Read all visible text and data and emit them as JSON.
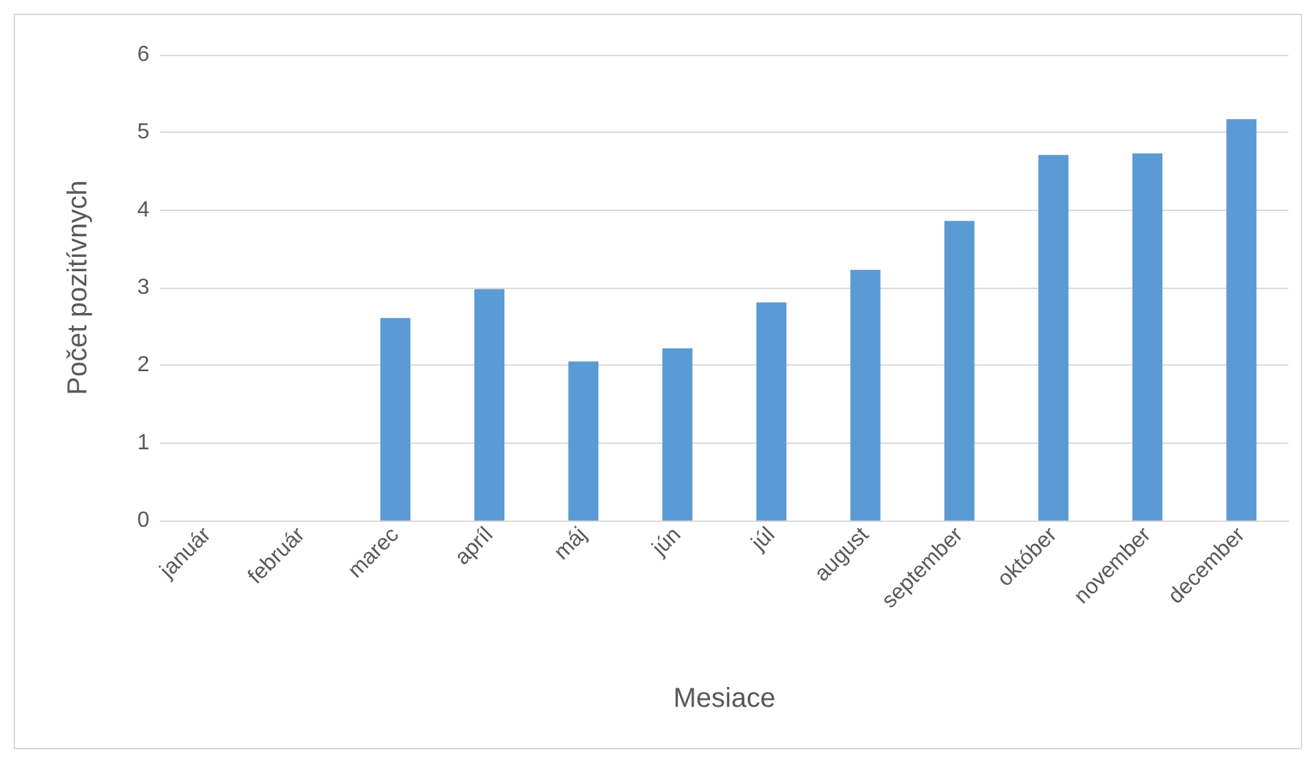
{
  "chart_data": {
    "type": "bar",
    "xlabel": "Mesiace",
    "ylabel": "Počet pozitívnych",
    "categories": [
      "január",
      "február",
      "marec",
      "apríl",
      "máj",
      "jún",
      "júl",
      "august",
      "september",
      "október",
      "november",
      "december"
    ],
    "values": [
      0,
      0,
      2.61,
      2.98,
      2.05,
      2.22,
      2.81,
      3.23,
      3.86,
      4.71,
      4.73,
      5.17
    ],
    "color": "#5b9bd5",
    "ylim": [
      0,
      6
    ],
    "yticks": [
      0,
      1,
      2,
      3,
      4,
      5,
      6
    ],
    "grid": "y"
  }
}
